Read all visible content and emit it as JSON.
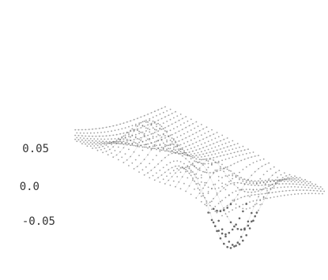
{
  "chart_data": {
    "type": "surface",
    "zaxis": {
      "tick_labels": [
        "0.05",
        "0.0",
        "-0.05"
      ],
      "ticks": [
        0.05,
        0.0,
        -0.05
      ],
      "zlim": [
        -0.08,
        0.09
      ]
    },
    "style": {
      "marker": "dot-wireframe",
      "ink": "#555555",
      "grid": false,
      "legend": "none"
    },
    "surface": {
      "x_range": [
        -1,
        1
      ],
      "y_range": [
        -1,
        1
      ],
      "resolution": 34,
      "features": [
        {
          "kind": "trough",
          "x": 0.35,
          "y": -0.15,
          "depth": -0.07
        },
        {
          "kind": "ridge",
          "x": -0.2,
          "y": 0.45,
          "height": 0.035
        },
        {
          "kind": "bump",
          "x": 0.55,
          "y": 0.6,
          "height": 0.025
        }
      ]
    }
  }
}
